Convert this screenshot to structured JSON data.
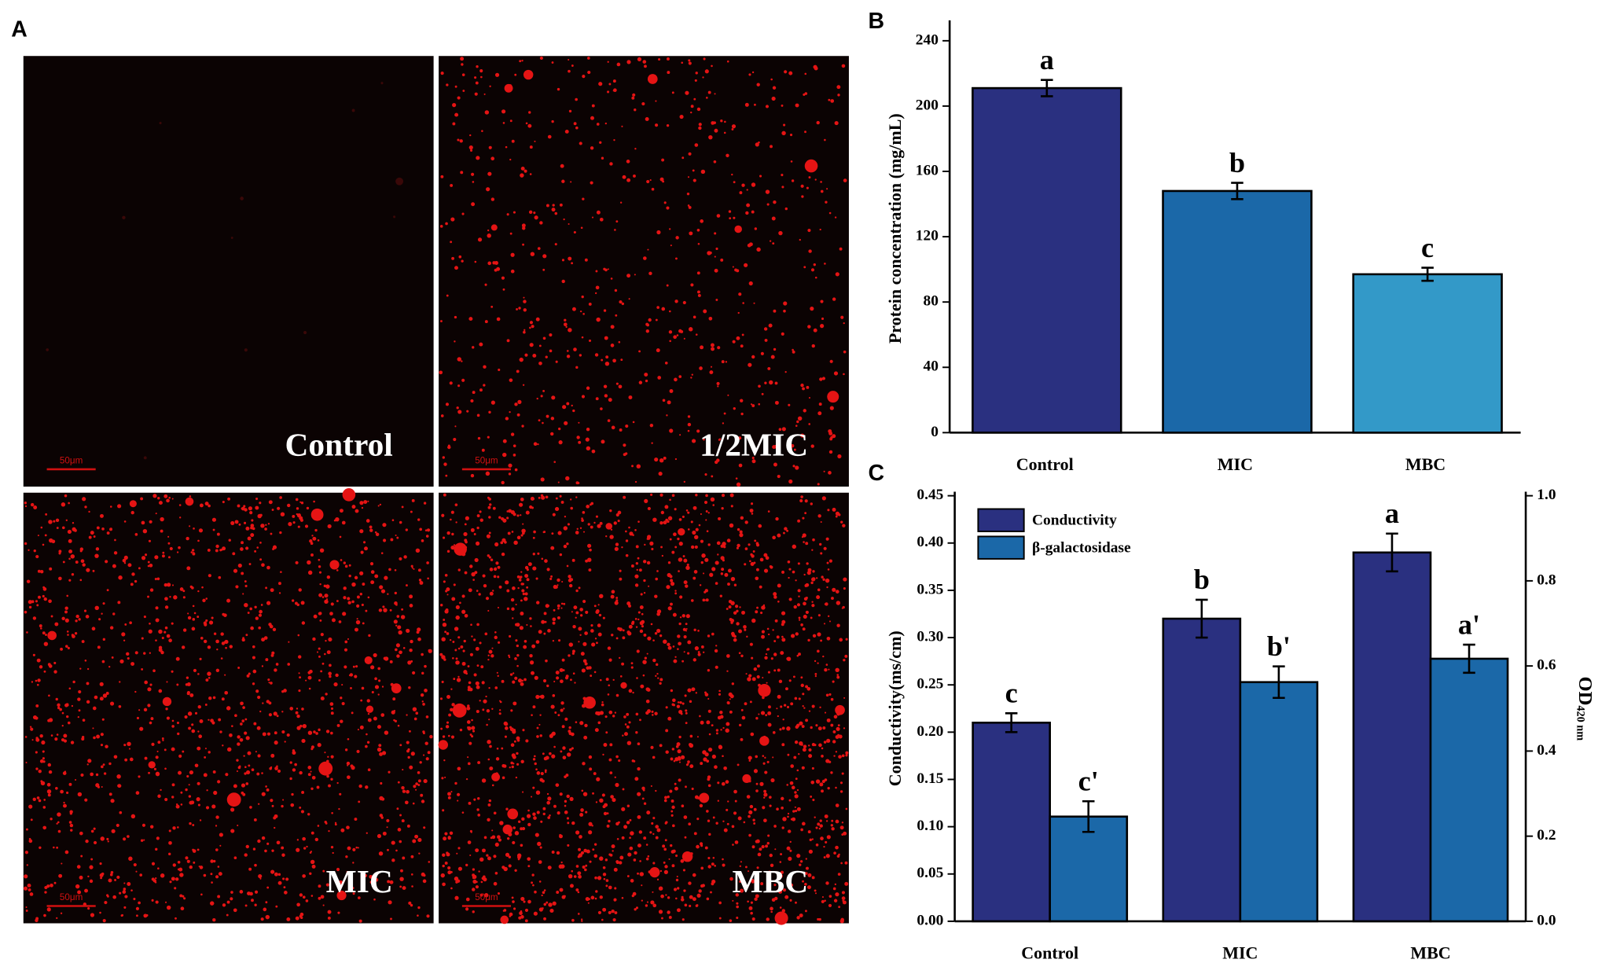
{
  "panels": {
    "A": {
      "letter": "A",
      "images": [
        {
          "label": "Control",
          "scale_bar": "50μm"
        },
        {
          "label": "1/2MIC",
          "scale_bar": "50μm"
        },
        {
          "label": "MIC",
          "scale_bar": "50μm"
        },
        {
          "label": "MBC",
          "scale_bar": "50μm"
        }
      ]
    },
    "B": {
      "letter": "B"
    },
    "C": {
      "letter": "C"
    }
  },
  "chart_data": [
    {
      "type": "bar",
      "ylabel": "Protein concentration (mg/mL)",
      "categories": [
        "Control",
        "MIC",
        "MBC"
      ],
      "values": [
        211,
        148,
        97
      ],
      "errors": [
        5,
        5,
        4
      ],
      "annotations": [
        "a",
        "b",
        "c"
      ],
      "colors": [
        "#2a3080",
        "#1b68a8",
        "#3399c8"
      ],
      "ylim": [
        0,
        250
      ],
      "yticks": [
        0,
        40,
        80,
        120,
        160,
        200,
        240
      ]
    },
    {
      "type": "grouped_bar",
      "ylabel": "Conductivity(ms/cm)",
      "y2label": {
        "text": "OD",
        "subscript": "420 nm"
      },
      "categories": [
        "Control",
        "MIC",
        "MBC"
      ],
      "series": [
        {
          "name": "Conductivity",
          "color": "#2a3080",
          "values": [
            0.21,
            0.32,
            0.39
          ],
          "errors": [
            0.01,
            0.02,
            0.02
          ],
          "annotations": [
            "c",
            "b",
            "a"
          ]
        },
        {
          "name": "β-galactosidase",
          "color": "#1b68a8",
          "axis": "y2",
          "values": [
            0.246,
            0.562,
            0.617
          ],
          "errors": [
            0.036,
            0.037,
            0.033
          ],
          "annotations": [
            "c'",
            "b'",
            "a'"
          ]
        }
      ],
      "legend": "upper left",
      "ylim": [
        0,
        0.45
      ],
      "yticks": [
        {
          "value": 0,
          "label": "0.00"
        },
        0.05,
        {
          "value": 0.1,
          "label": "0.10"
        },
        0.15,
        {
          "value": 0.2,
          "label": "0.20"
        },
        0.25,
        {
          "value": 0.3,
          "label": "0.30"
        },
        0.35,
        {
          "value": 0.4,
          "label": "0.40"
        },
        0.45
      ],
      "y2lim": [
        0,
        1
      ],
      "y2ticks": [
        {
          "value": 0,
          "label": "0.0"
        },
        0.2,
        0.4,
        0.6,
        0.8,
        {
          "value": 1,
          "label": "1.0"
        }
      ]
    }
  ]
}
